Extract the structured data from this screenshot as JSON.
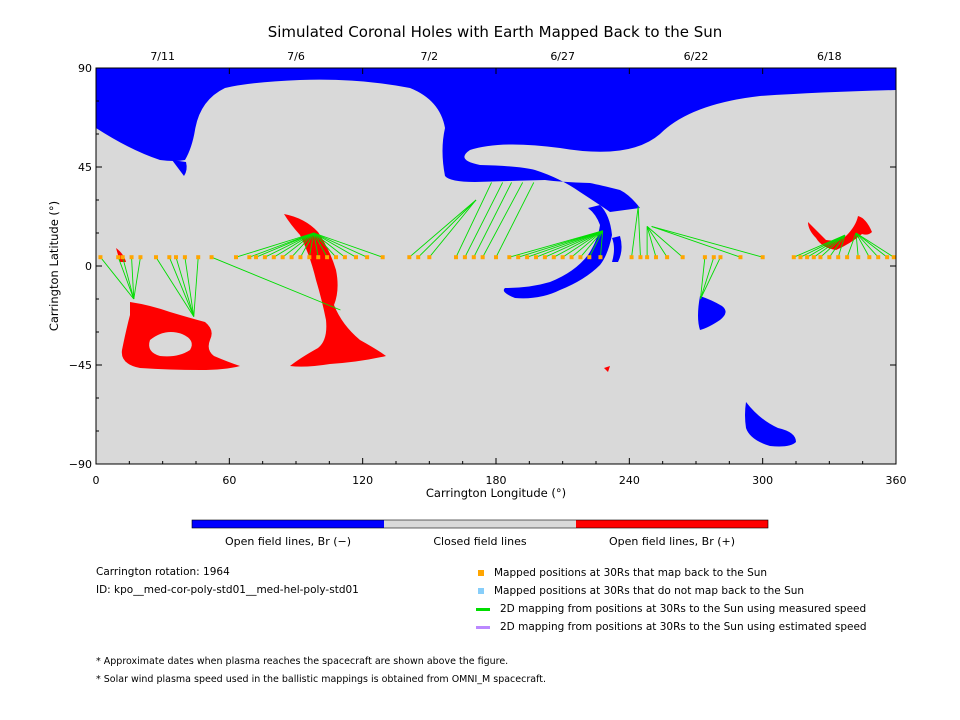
{
  "chart_data": {
    "type": "map",
    "title": "Simulated Coronal Holes with Earth Mapped Back to the Sun",
    "xlabel": "Carrington Longitude (°)",
    "ylabel": "Carrington Latitude (°)",
    "xlim": [
      0,
      360
    ],
    "ylim": [
      -90,
      90
    ],
    "xticks": [
      "0",
      "60",
      "120",
      "180",
      "240",
      "300",
      "360"
    ],
    "yticks": [
      "90",
      "45",
      "0",
      "−45",
      "−90"
    ],
    "top_dates": [
      {
        "label": "7/11",
        "lon": 30
      },
      {
        "label": "7/6",
        "lon": 90
      },
      {
        "label": "7/2",
        "lon": 150
      },
      {
        "label": "6/27",
        "lon": 210
      },
      {
        "label": "6/22",
        "lon": 270
      },
      {
        "label": "6/18",
        "lon": 330
      }
    ],
    "colors": {
      "open_negative": "#0000ff",
      "closed": "#d9d9d9",
      "open_positive": "#ff0000",
      "mapped_point": "#ffa500",
      "unmapped_point": "#87cefa",
      "measured_speed_line": "#00dd00",
      "estimated_speed_line": "#bb88ff"
    },
    "colorbar_labels": {
      "negative": "Open field lines, Br (−)",
      "closed": "Closed field lines",
      "positive": "Open field lines, Br (+)"
    },
    "mapping_points": [
      {
        "lon": 2,
        "lat": 4,
        "to": [
          17,
          -15
        ]
      },
      {
        "lon": 10,
        "lat": 4,
        "to": [
          17,
          -15
        ]
      },
      {
        "lon": 12,
        "lat": 4,
        "to": [
          17,
          -15
        ]
      },
      {
        "lon": 16,
        "lat": 4,
        "to": [
          17,
          -15
        ]
      },
      {
        "lon": 20,
        "lat": 4,
        "to": [
          17,
          -15
        ]
      },
      {
        "lon": 27,
        "lat": 4,
        "to": [
          44,
          -23
        ]
      },
      {
        "lon": 33,
        "lat": 4,
        "to": [
          44,
          -23
        ]
      },
      {
        "lon": 36,
        "lat": 4,
        "to": [
          44,
          -23
        ]
      },
      {
        "lon": 40,
        "lat": 4,
        "to": [
          44,
          -23
        ]
      },
      {
        "lon": 46,
        "lat": 4,
        "to": [
          44,
          -23
        ]
      },
      {
        "lon": 52,
        "lat": 4,
        "to": [
          110,
          -20
        ]
      },
      {
        "lon": 63,
        "lat": 4,
        "to": [
          98,
          15
        ]
      },
      {
        "lon": 69,
        "lat": 4,
        "to": [
          98,
          15
        ]
      },
      {
        "lon": 72,
        "lat": 4,
        "to": [
          98,
          15
        ]
      },
      {
        "lon": 76,
        "lat": 4,
        "to": [
          98,
          15
        ]
      },
      {
        "lon": 80,
        "lat": 4,
        "to": [
          98,
          15
        ]
      },
      {
        "lon": 84,
        "lat": 4,
        "to": [
          98,
          15
        ]
      },
      {
        "lon": 88,
        "lat": 4,
        "to": [
          98,
          15
        ]
      },
      {
        "lon": 92,
        "lat": 4,
        "to": [
          98,
          15
        ]
      },
      {
        "lon": 96,
        "lat": 4,
        "to": [
          98,
          15
        ]
      },
      {
        "lon": 100,
        "lat": 4,
        "to": [
          98,
          15
        ]
      },
      {
        "lon": 104,
        "lat": 4,
        "to": [
          98,
          15
        ]
      },
      {
        "lon": 108,
        "lat": 4,
        "to": [
          98,
          15
        ]
      },
      {
        "lon": 112,
        "lat": 4,
        "to": [
          98,
          15
        ]
      },
      {
        "lon": 117,
        "lat": 4,
        "to": [
          98,
          15
        ]
      },
      {
        "lon": 122,
        "lat": 4,
        "to": [
          98,
          15
        ]
      },
      {
        "lon": 129,
        "lat": 4,
        "to": [
          98,
          15
        ]
      },
      {
        "lon": 141,
        "lat": 4,
        "to": [
          171,
          30
        ]
      },
      {
        "lon": 145,
        "lat": 4,
        "to": [
          171,
          30
        ]
      },
      {
        "lon": 150,
        "lat": 4,
        "to": [
          171,
          30
        ]
      },
      {
        "lon": 162,
        "lat": 4,
        "to": [
          178,
          38
        ]
      },
      {
        "lon": 166,
        "lat": 4,
        "to": [
          183,
          38
        ]
      },
      {
        "lon": 170,
        "lat": 4,
        "to": [
          187,
          38
        ]
      },
      {
        "lon": 174,
        "lat": 4,
        "to": [
          192,
          38
        ]
      },
      {
        "lon": 180,
        "lat": 4,
        "to": [
          197,
          38
        ]
      },
      {
        "lon": 186,
        "lat": 4,
        "to": [
          228,
          16
        ]
      },
      {
        "lon": 190,
        "lat": 4,
        "to": [
          228,
          16
        ]
      },
      {
        "lon": 194,
        "lat": 4,
        "to": [
          228,
          16
        ]
      },
      {
        "lon": 198,
        "lat": 4,
        "to": [
          228,
          16
        ]
      },
      {
        "lon": 202,
        "lat": 4,
        "to": [
          228,
          16
        ]
      },
      {
        "lon": 206,
        "lat": 4,
        "to": [
          228,
          16
        ]
      },
      {
        "lon": 210,
        "lat": 4,
        "to": [
          228,
          16
        ]
      },
      {
        "lon": 214,
        "lat": 4,
        "to": [
          228,
          16
        ]
      },
      {
        "lon": 218,
        "lat": 4,
        "to": [
          228,
          16
        ]
      },
      {
        "lon": 222,
        "lat": 4,
        "to": [
          228,
          16
        ]
      },
      {
        "lon": 227,
        "lat": 4,
        "to": [
          228,
          16
        ]
      },
      {
        "lon": 241,
        "lat": 4,
        "to": [
          244,
          27
        ]
      },
      {
        "lon": 245,
        "lat": 4,
        "to": [
          244,
          27
        ]
      },
      {
        "lon": 248,
        "lat": 4,
        "to": [
          248,
          18
        ]
      },
      {
        "lon": 252,
        "lat": 4,
        "to": [
          248,
          18
        ]
      },
      {
        "lon": 257,
        "lat": 4,
        "to": [
          248,
          18
        ]
      },
      {
        "lon": 264,
        "lat": 4,
        "to": [
          248,
          18
        ]
      },
      {
        "lon": 274,
        "lat": 4,
        "to": [
          272,
          -15
        ]
      },
      {
        "lon": 278,
        "lat": 4,
        "to": [
          272,
          -15
        ]
      },
      {
        "lon": 281,
        "lat": 4,
        "to": [
          272,
          -15
        ]
      },
      {
        "lon": 290,
        "lat": 4,
        "to": [
          250,
          18
        ]
      },
      {
        "lon": 300,
        "lat": 4,
        "to": [
          250,
          18
        ]
      },
      {
        "lon": 314,
        "lat": 4,
        "to": [
          337,
          14
        ]
      },
      {
        "lon": 317,
        "lat": 4,
        "to": [
          337,
          14
        ]
      },
      {
        "lon": 320,
        "lat": 4,
        "to": [
          337,
          14
        ]
      },
      {
        "lon": 323,
        "lat": 4,
        "to": [
          337,
          14
        ]
      },
      {
        "lon": 326,
        "lat": 4,
        "to": [
          337,
          14
        ]
      },
      {
        "lon": 330,
        "lat": 4,
        "to": [
          337,
          14
        ]
      },
      {
        "lon": 334,
        "lat": 4,
        "to": [
          337,
          14
        ]
      },
      {
        "lon": 338,
        "lat": 4,
        "to": [
          342,
          15
        ]
      },
      {
        "lon": 343,
        "lat": 4,
        "to": [
          342,
          15
        ]
      },
      {
        "lon": 348,
        "lat": 4,
        "to": [
          342,
          15
        ]
      },
      {
        "lon": 352,
        "lat": 4,
        "to": [
          342,
          15
        ]
      },
      {
        "lon": 356,
        "lat": 4,
        "to": [
          342,
          15
        ]
      },
      {
        "lon": 359,
        "lat": 4,
        "to": [
          342,
          15
        ]
      }
    ]
  },
  "info": {
    "rotation": "Carrington rotation: 1964",
    "id": "ID: kpo__med-cor-poly-std01__med-hel-poly-std01"
  },
  "legend": [
    {
      "kind": "square",
      "color": "#ffa500",
      "label": "Mapped positions at 30Rs that map back to the Sun"
    },
    {
      "kind": "square",
      "color": "#87cefa",
      "label": "Mapped positions at 30Rs that do not map back to the Sun"
    },
    {
      "kind": "line",
      "color": "#00dd00",
      "label": "2D mapping from positions at 30Rs to the Sun using measured speed"
    },
    {
      "kind": "line",
      "color": "#bb88ff",
      "label": "2D mapping from positions at 30Rs to the Sun using estimated speed"
    }
  ],
  "footnotes": [
    "* Approximate dates when plasma reaches the spacecraft are shown above the figure.",
    "* Solar wind plasma speed used in the ballistic mappings is obtained from OMNI_M spacecraft."
  ]
}
